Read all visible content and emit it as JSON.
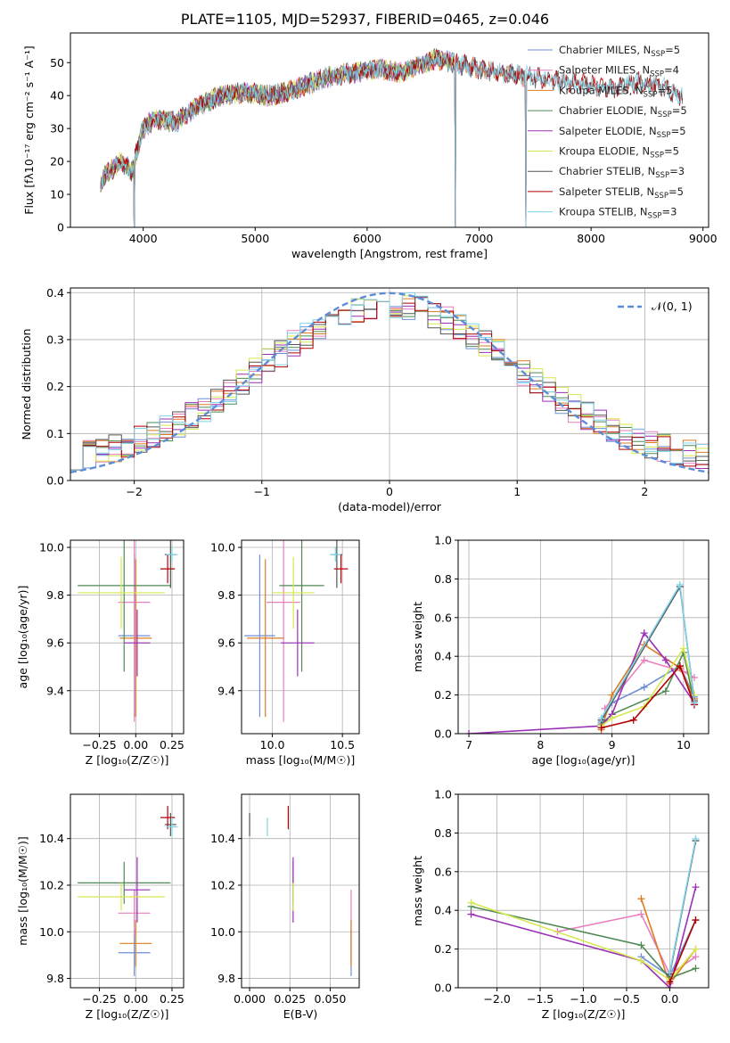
{
  "title": "PLATE=1105, MJD=52937, FIBERID=0465, z=0.046",
  "models": [
    {
      "name": "Chabrier MILES",
      "nssp": "5",
      "color": "#6e8fd6"
    },
    {
      "name": "Salpeter MILES",
      "nssp": "4",
      "color": "#e87fbf"
    },
    {
      "name": "Kroupa MILES",
      "nssp": "5",
      "color": "#dd7b22"
    },
    {
      "name": "Chabrier ELODIE",
      "nssp": "5",
      "color": "#4f8a55"
    },
    {
      "name": "Salpeter ELODIE",
      "nssp": "5",
      "color": "#9b2fb6"
    },
    {
      "name": "Kroupa ELODIE",
      "nssp": "5",
      "color": "#d6e84f"
    },
    {
      "name": "Chabrier STELIB",
      "nssp": "3",
      "color": "#555555"
    },
    {
      "name": "Salpeter STELIB",
      "nssp": "5",
      "color": "#b00000"
    },
    {
      "name": "Kroupa STELIB",
      "nssp": "3",
      "color": "#7fd3e8"
    }
  ],
  "chart_data": [
    {
      "type": "line",
      "id": "spectrum",
      "xlabel": "wavelength [Angstrom, rest frame]",
      "ylabel": "Flux [fλ10⁻¹⁷ erg cm⁻² s⁻¹ A⁻¹]",
      "xlim": [
        3350,
        9050
      ],
      "ylim": [
        0,
        59
      ],
      "xticks": [
        4000,
        5000,
        6000,
        7000,
        8000,
        9000
      ],
      "yticks": [
        0,
        10,
        20,
        30,
        40,
        50
      ],
      "continuum": [
        [
          3620,
          14
        ],
        [
          3700,
          17
        ],
        [
          3800,
          20
        ],
        [
          3900,
          17
        ],
        [
          3950,
          24
        ],
        [
          4000,
          30
        ],
        [
          4100,
          33
        ],
        [
          4300,
          32
        ],
        [
          4500,
          37
        ],
        [
          4700,
          40
        ],
        [
          4900,
          41
        ],
        [
          5100,
          40
        ],
        [
          5300,
          41
        ],
        [
          5500,
          44
        ],
        [
          5700,
          46
        ],
        [
          5900,
          47
        ],
        [
          6100,
          48
        ],
        [
          6300,
          47
        ],
        [
          6600,
          51
        ],
        [
          6800,
          50
        ],
        [
          7000,
          48
        ],
        [
          7200,
          47
        ],
        [
          7400,
          46
        ],
        [
          7600,
          45
        ],
        [
          7800,
          44
        ],
        [
          8000,
          43
        ],
        [
          8200,
          42
        ],
        [
          8400,
          44
        ],
        [
          8600,
          43
        ],
        [
          8800,
          40
        ]
      ],
      "data_ends": {
        "Salpeter ELODIE": 6790,
        "Chabrier ELODIE": 6790,
        "Kroupa ELODIE": 6790,
        "Chabrier MILES": 7420,
        "Salpeter MILES": 7420,
        "Kroupa MILES": 7420
      },
      "drops": [
        3920,
        6790,
        7420
      ],
      "grid": false,
      "legend": "top-right"
    },
    {
      "type": "histogram",
      "id": "residuals",
      "xlabel": "(data-model)/error",
      "ylabel": "Normed distribution",
      "xlim": [
        -2.5,
        2.5
      ],
      "ylim": [
        0,
        0.41
      ],
      "xticks": [
        -2,
        -1,
        0,
        1,
        2
      ],
      "yticks": [
        0.0,
        0.1,
        0.2,
        0.3,
        0.4
      ],
      "bin_width": 0.1,
      "reference_curve": {
        "name": "𝒩(0, 1)",
        "color": "#5b8dd9",
        "mean": 0,
        "sigma": 1
      },
      "grid": true,
      "legend": "top-right"
    },
    {
      "type": "scatter",
      "id": "age-vs-Z",
      "xlabel": "Z [log₁₀(Z/Z☉)]",
      "ylabel": "age  [log₁₀(age/yr)]",
      "xlim": [
        -0.45,
        0.33
      ],
      "ylim": [
        9.22,
        10.03
      ],
      "xticks": [
        -0.25,
        0.0,
        0.25
      ],
      "yticks": [
        9.4,
        9.6,
        9.8,
        10.0
      ],
      "grid": true,
      "points": [
        {
          "model": "Chabrier MILES",
          "x": -0.01,
          "xerr": 0.11,
          "y": 9.63,
          "yerr": 0.34
        },
        {
          "model": "Salpeter MILES",
          "x": -0.01,
          "xerr": 0.11,
          "y": 9.77,
          "yerr": 0.5
        },
        {
          "model": "Kroupa MILES",
          "x": 0.0,
          "xerr": 0.11,
          "y": 9.62,
          "yerr": 0.33
        },
        {
          "model": "Chabrier ELODIE",
          "x": -0.08,
          "xerr": 0.32,
          "y": 9.84,
          "yerr": 0.36
        },
        {
          "model": "Salpeter ELODIE",
          "x": 0.01,
          "xerr": 0.09,
          "y": 9.6,
          "yerr": 0.14
        },
        {
          "model": "Kroupa ELODIE",
          "x": -0.1,
          "xerr": 0.3,
          "y": 9.81,
          "yerr": 0.15
        },
        {
          "model": "Chabrier STELIB",
          "x": 0.24,
          "xerr": 0.04,
          "y": 9.97,
          "yerr": 0.14
        },
        {
          "model": "Salpeter STELIB",
          "x": 0.22,
          "xerr": 0.05,
          "y": 9.91,
          "yerr": 0.06
        },
        {
          "model": "Kroupa STELIB",
          "x": 0.25,
          "xerr": 0.04,
          "y": 9.97,
          "yerr": 0.03
        }
      ]
    },
    {
      "type": "scatter",
      "id": "age-vs-mass",
      "xlabel": "mass [log₁₀(M/M☉)]",
      "ylabel": "",
      "xlim": [
        9.78,
        10.62
      ],
      "ylim": [
        9.22,
        10.03
      ],
      "xticks": [
        10.0,
        10.5
      ],
      "yticks": [
        9.4,
        9.6,
        9.8,
        10.0
      ],
      "grid": true,
      "points": [
        {
          "model": "Chabrier MILES",
          "x": 9.91,
          "xerr": 0.11,
          "y": 9.63,
          "yerr": 0.34
        },
        {
          "model": "Salpeter MILES",
          "x": 10.08,
          "xerr": 0.12,
          "y": 9.77,
          "yerr": 0.5
        },
        {
          "model": "Kroupa MILES",
          "x": 9.95,
          "xerr": 0.13,
          "y": 9.62,
          "yerr": 0.33
        },
        {
          "model": "Chabrier ELODIE",
          "x": 10.21,
          "xerr": 0.16,
          "y": 9.84,
          "yerr": 0.36
        },
        {
          "model": "Salpeter ELODIE",
          "x": 10.18,
          "xerr": 0.12,
          "y": 9.6,
          "yerr": 0.14
        },
        {
          "model": "Kroupa ELODIE",
          "x": 10.15,
          "xerr": 0.15,
          "y": 9.81,
          "yerr": 0.15
        },
        {
          "model": "Chabrier STELIB",
          "x": 10.46,
          "xerr": 0.04,
          "y": 9.97,
          "yerr": 0.14
        },
        {
          "model": "Salpeter STELIB",
          "x": 10.49,
          "xerr": 0.05,
          "y": 9.91,
          "yerr": 0.06
        },
        {
          "model": "Kroupa STELIB",
          "x": 10.45,
          "xerr": 0.04,
          "y": 9.97,
          "yerr": 0.03
        }
      ]
    },
    {
      "type": "line",
      "id": "mass-weight-vs-age",
      "xlabel": "age  [log₁₀(age/yr)]",
      "ylabel": "mass weight",
      "xlim": [
        6.85,
        10.35
      ],
      "ylim": [
        0,
        1.0
      ],
      "xticks": [
        7,
        8,
        9,
        10
      ],
      "yticks": [
        0.0,
        0.2,
        0.4,
        0.6,
        0.8,
        1.0
      ],
      "grid": true,
      "series": [
        {
          "model": "Chabrier MILES",
          "x": [
            8.85,
            9.0,
            9.45,
            9.95,
            10.15
          ],
          "y": [
            0.06,
            0.16,
            0.24,
            0.35,
            0.19
          ]
        },
        {
          "model": "Salpeter MILES",
          "x": [
            8.9,
            9.45,
            10.0,
            10.15
          ],
          "y": [
            0.13,
            0.38,
            0.32,
            0.29
          ]
        },
        {
          "model": "Kroupa MILES",
          "x": [
            8.85,
            9.0,
            9.45,
            9.95,
            10.15
          ],
          "y": [
            0.02,
            0.2,
            0.46,
            0.34,
            0.18
          ]
        },
        {
          "model": "Chabrier ELODIE",
          "x": [
            8.85,
            9.0,
            9.75,
            10.0,
            10.15
          ],
          "y": [
            0.05,
            0.1,
            0.22,
            0.42,
            0.16
          ]
        },
        {
          "model": "Salpeter ELODIE",
          "x": [
            7.0,
            8.85,
            9.0,
            9.45,
            9.75,
            10.15
          ],
          "y": [
            0.0,
            0.04,
            0.1,
            0.52,
            0.38,
            0.16
          ]
        },
        {
          "model": "Kroupa ELODIE",
          "x": [
            8.85,
            9.0,
            9.45,
            10.0,
            10.15
          ],
          "y": [
            0.04,
            0.08,
            0.14,
            0.44,
            0.2
          ]
        },
        {
          "model": "Chabrier STELIB",
          "x": [
            8.85,
            9.95,
            10.15
          ],
          "y": [
            0.07,
            0.76,
            0.17
          ]
        },
        {
          "model": "Salpeter STELIB",
          "x": [
            8.85,
            9.3,
            9.95,
            10.15
          ],
          "y": [
            0.03,
            0.07,
            0.35,
            0.15
          ]
        },
        {
          "model": "Kroupa STELIB",
          "x": [
            8.85,
            9.95,
            10.15
          ],
          "y": [
            0.08,
            0.77,
            0.16
          ]
        }
      ]
    },
    {
      "type": "scatter",
      "id": "mass-vs-Z",
      "xlabel": "Z [log₁₀(Z/Z☉)]",
      "ylabel": "mass [log₁₀(M/M☉)]",
      "xlim": [
        -0.45,
        0.33
      ],
      "ylim": [
        9.76,
        10.59
      ],
      "xticks": [
        -0.25,
        0.0,
        0.25
      ],
      "yticks": [
        9.8,
        10.0,
        10.2,
        10.4
      ],
      "grid": true,
      "points": [
        {
          "model": "Chabrier MILES",
          "x": -0.01,
          "xerr": 0.11,
          "y": 9.91,
          "yerr": 0.1
        },
        {
          "model": "Salpeter MILES",
          "x": -0.01,
          "xerr": 0.11,
          "y": 10.08,
          "yerr": 0.1
        },
        {
          "model": "Kroupa MILES",
          "x": 0.0,
          "xerr": 0.11,
          "y": 9.95,
          "yerr": 0.1
        },
        {
          "model": "Chabrier ELODIE",
          "x": -0.08,
          "xerr": 0.32,
          "y": 10.21,
          "yerr": 0.09
        },
        {
          "model": "Salpeter ELODIE",
          "x": 0.01,
          "xerr": 0.09,
          "y": 10.18,
          "yerr": 0.14
        },
        {
          "model": "Kroupa ELODIE",
          "x": -0.1,
          "xerr": 0.3,
          "y": 10.15,
          "yerr": 0.06
        },
        {
          "model": "Chabrier STELIB",
          "x": 0.24,
          "xerr": 0.04,
          "y": 10.46,
          "yerr": 0.05
        },
        {
          "model": "Salpeter STELIB",
          "x": 0.22,
          "xerr": 0.05,
          "y": 10.49,
          "yerr": 0.05
        },
        {
          "model": "Kroupa STELIB",
          "x": 0.25,
          "xerr": 0.04,
          "y": 10.45,
          "yerr": 0.04
        }
      ]
    },
    {
      "type": "scatter",
      "id": "mass-vs-ebv",
      "xlabel": "E(B-V)",
      "ylabel": "",
      "xlim": [
        -0.005,
        0.068
      ],
      "ylim": [
        9.76,
        10.59
      ],
      "xticks": [
        0.0,
        0.025,
        0.05
      ],
      "xticklabels": [
        "0.000",
        "0.025",
        "0.050"
      ],
      "yticks": [
        9.8,
        10.0,
        10.2,
        10.4
      ],
      "grid": true,
      "points": [
        {
          "model": "Chabrier MILES",
          "x": 0.063,
          "y": 9.91,
          "yerr": 0.1
        },
        {
          "model": "Salpeter MILES",
          "x": 0.063,
          "y": 10.08,
          "yerr": 0.1
        },
        {
          "model": "Kroupa MILES",
          "x": 0.063,
          "y": 9.95,
          "yerr": 0.1
        },
        {
          "model": "Chabrier ELODIE",
          "x": 0.027,
          "y": 10.21,
          "yerr": 0.09
        },
        {
          "model": "Salpeter ELODIE",
          "x": 0.027,
          "y": 10.18,
          "yerr": 0.14
        },
        {
          "model": "Kroupa ELODIE",
          "x": 0.027,
          "y": 10.15,
          "yerr": 0.06
        },
        {
          "model": "Chabrier STELIB",
          "x": 0.0,
          "y": 10.46,
          "yerr": 0.05
        },
        {
          "model": "Salpeter STELIB",
          "x": 0.024,
          "y": 10.49,
          "yerr": 0.05
        },
        {
          "model": "Kroupa STELIB",
          "x": 0.011,
          "y": 10.45,
          "yerr": 0.04
        }
      ]
    },
    {
      "type": "line",
      "id": "mass-weight-vs-Z",
      "xlabel": "Z [log₁₀(Z/Z☉)]",
      "ylabel": "mass weight",
      "xlim": [
        -2.45,
        0.45
      ],
      "ylim": [
        0,
        1.0
      ],
      "xticks": [
        -2.0,
        -1.5,
        -1.0,
        -0.5,
        0.0
      ],
      "yticks": [
        0.0,
        0.2,
        0.4,
        0.6,
        0.8,
        1.0
      ],
      "grid": true,
      "series": [
        {
          "model": "Chabrier MILES",
          "x": [
            -0.33,
            0.0,
            0.3
          ],
          "y": [
            0.16,
            0.06,
            0.35
          ]
        },
        {
          "model": "Salpeter MILES",
          "x": [
            -1.3,
            -0.33,
            0.0,
            0.3
          ],
          "y": [
            0.29,
            0.38,
            0.07,
            0.16
          ]
        },
        {
          "model": "Kroupa MILES",
          "x": [
            -0.33,
            0.0,
            0.3
          ],
          "y": [
            0.46,
            0.02,
            0.2
          ]
        },
        {
          "model": "Chabrier ELODIE",
          "x": [
            -2.3,
            -0.33,
            0.0,
            0.3
          ],
          "y": [
            0.42,
            0.22,
            0.05,
            0.1
          ]
        },
        {
          "model": "Salpeter ELODIE",
          "x": [
            -2.3,
            -0.33,
            0.0,
            0.3
          ],
          "y": [
            0.38,
            0.14,
            0.0,
            0.52
          ]
        },
        {
          "model": "Kroupa ELODIE",
          "x": [
            -2.3,
            -0.33,
            0.0,
            0.3
          ],
          "y": [
            0.44,
            0.14,
            0.04,
            0.2
          ]
        },
        {
          "model": "Chabrier STELIB",
          "x": [
            0.0,
            0.3
          ],
          "y": [
            0.07,
            0.76
          ]
        },
        {
          "model": "Salpeter STELIB",
          "x": [
            0.0,
            0.3
          ],
          "y": [
            0.03,
            0.35
          ]
        },
        {
          "model": "Kroupa STELIB",
          "x": [
            0.0,
            0.3
          ],
          "y": [
            0.08,
            0.77
          ]
        }
      ]
    }
  ]
}
